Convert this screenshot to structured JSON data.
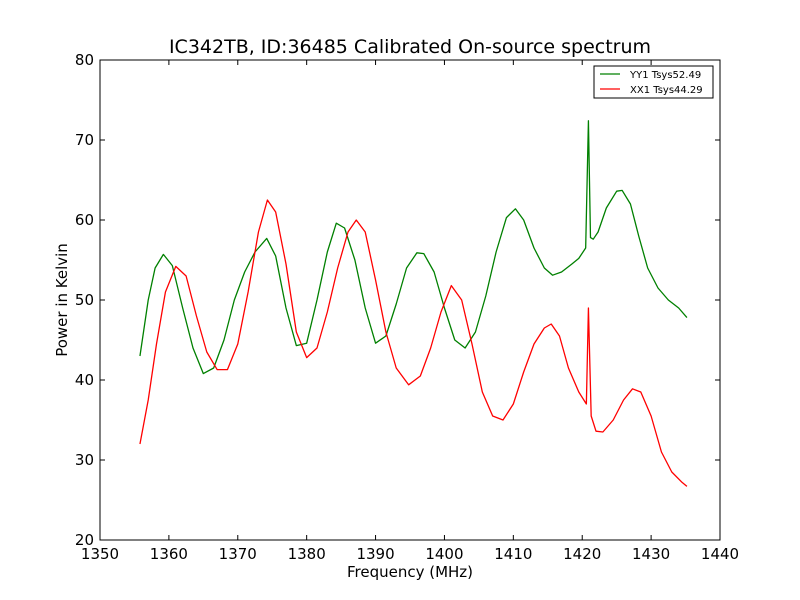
{
  "chart_data": {
    "type": "line",
    "title": "IC342TB, ID:36485 Calibrated On-source spectrum",
    "xlabel": "Frequency (MHz)",
    "ylabel": "Power in Kelvin",
    "xlim": [
      1350,
      1440
    ],
    "ylim": [
      20,
      80
    ],
    "xticks": [
      1350,
      1360,
      1370,
      1380,
      1390,
      1400,
      1410,
      1420,
      1430,
      1440
    ],
    "yticks": [
      20,
      30,
      40,
      50,
      60,
      70,
      80
    ],
    "grid": false,
    "legend_position": "top-right",
    "series": [
      {
        "name": "YY1 Tsys52.49",
        "color": "#008000",
        "x": [
          1355.8,
          1357.0,
          1358.0,
          1359.2,
          1360.5,
          1362.0,
          1363.5,
          1365.0,
          1366.5,
          1368.0,
          1369.5,
          1371.0,
          1372.5,
          1374.2,
          1375.5,
          1377.0,
          1378.5,
          1380.0,
          1381.5,
          1383.0,
          1384.3,
          1385.5,
          1387.0,
          1388.5,
          1390.0,
          1391.5,
          1393.0,
          1394.5,
          1396.0,
          1397.0,
          1398.5,
          1400.0,
          1401.5,
          1403.0,
          1404.5,
          1406.0,
          1407.5,
          1409.0,
          1410.3,
          1411.5,
          1413.0,
          1414.5,
          1415.7,
          1417.0,
          1418.5,
          1419.5,
          1420.5,
          1420.9,
          1421.2,
          1421.6,
          1422.3,
          1423.5,
          1425.0,
          1425.8,
          1427.0,
          1428.2,
          1429.5,
          1431.0,
          1432.5,
          1434.0,
          1435.2
        ],
        "values": [
          43.0,
          50.0,
          54.0,
          55.7,
          54.3,
          49.0,
          44.0,
          40.8,
          41.5,
          45.0,
          50.0,
          53.5,
          56.0,
          57.7,
          55.5,
          49.0,
          44.3,
          44.6,
          50.0,
          56.0,
          59.6,
          59.0,
          55.0,
          49.0,
          44.6,
          45.5,
          49.5,
          54.0,
          55.9,
          55.8,
          53.5,
          49.0,
          45.0,
          44.0,
          46.0,
          50.5,
          56.0,
          60.3,
          61.4,
          60.0,
          56.5,
          54.0,
          53.1,
          53.5,
          54.5,
          55.2,
          56.5,
          72.4,
          57.8,
          57.6,
          58.5,
          61.5,
          63.6,
          63.7,
          62.0,
          58.0,
          54.0,
          51.5,
          50.0,
          49.0,
          47.8
        ]
      },
      {
        "name": "XX1 Tsys44.29",
        "color": "#ff0000",
        "x": [
          1355.8,
          1357.0,
          1358.2,
          1359.5,
          1361.0,
          1362.5,
          1364.0,
          1365.5,
          1367.0,
          1368.5,
          1370.0,
          1371.5,
          1373.0,
          1374.3,
          1375.5,
          1377.0,
          1378.5,
          1380.0,
          1381.5,
          1383.0,
          1384.5,
          1386.0,
          1387.2,
          1388.5,
          1390.0,
          1391.5,
          1393.0,
          1394.8,
          1396.5,
          1398.0,
          1399.5,
          1401.0,
          1402.5,
          1404.0,
          1405.5,
          1407.0,
          1408.5,
          1410.0,
          1411.5,
          1413.0,
          1414.5,
          1415.5,
          1416.7,
          1418.0,
          1419.5,
          1420.6,
          1420.9,
          1421.3,
          1422.0,
          1423.0,
          1424.5,
          1426.0,
          1427.3,
          1428.5,
          1430.0,
          1431.5,
          1433.0,
          1434.5,
          1435.2
        ],
        "values": [
          32.0,
          37.5,
          44.5,
          51.0,
          54.2,
          53.0,
          48.0,
          43.5,
          41.3,
          41.3,
          44.5,
          51.0,
          58.5,
          62.5,
          61.0,
          54.5,
          46.0,
          42.8,
          44.0,
          48.5,
          54.0,
          58.5,
          60.0,
          58.5,
          52.5,
          46.0,
          41.5,
          39.4,
          40.5,
          44.0,
          48.5,
          51.8,
          50.0,
          44.5,
          38.5,
          35.5,
          35.0,
          37.0,
          41.0,
          44.5,
          46.5,
          47.0,
          45.5,
          41.5,
          38.5,
          37.0,
          49.0,
          35.5,
          33.6,
          33.5,
          35.0,
          37.5,
          38.9,
          38.5,
          35.5,
          31.0,
          28.5,
          27.2,
          26.7
        ]
      }
    ]
  }
}
